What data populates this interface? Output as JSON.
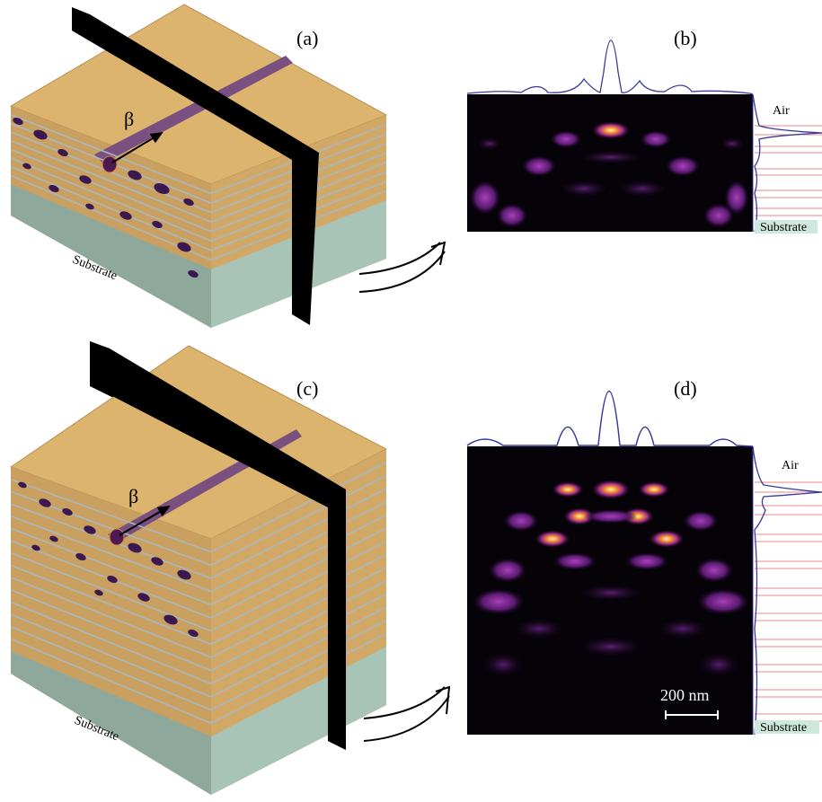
{
  "panels": [
    {
      "label": "(a)",
      "beta": "β",
      "substrate": "Substrate"
    },
    {
      "label": "(b)",
      "air": "Air",
      "substrate": "Substrate"
    },
    {
      "label": "(c)",
      "beta": "β",
      "substrate": "Substrate"
    },
    {
      "label": "(d)",
      "air": "Air",
      "substrate": "Substrate",
      "scale_bar": "200 nm"
    }
  ]
}
